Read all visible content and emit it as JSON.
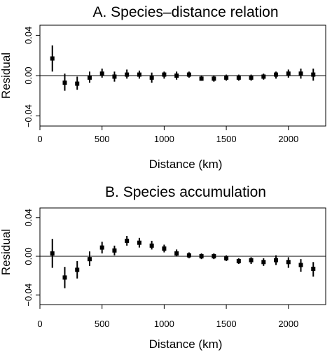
{
  "chart_data": [
    {
      "type": "scatter",
      "title": "A. Species–distance relation",
      "xlabel": "Distance (km)",
      "ylabel": "Residual",
      "xlim": [
        0,
        2300
      ],
      "ylim": [
        -0.05,
        0.05
      ],
      "xticks": [
        0,
        500,
        1000,
        1500,
        2000
      ],
      "yticks": [
        -0.04,
        0.0,
        0.04
      ],
      "ytick_labels": [
        "−0.04",
        "0.00",
        "0.04"
      ],
      "reference_line": 0,
      "grid": false,
      "series": [
        {
          "x": [
            100,
            200,
            300,
            400,
            500,
            600,
            700,
            800,
            900,
            1000,
            1100,
            1200,
            1300,
            1400,
            1500,
            1600,
            1700,
            1800,
            1900,
            2000,
            2100,
            2200
          ],
          "y": [
            0.017,
            -0.007,
            -0.008,
            -0.002,
            0.002,
            -0.001,
            0.001,
            0.001,
            -0.002,
            0.001,
            0.0,
            0.001,
            -0.003,
            -0.003,
            -0.002,
            -0.002,
            -0.002,
            -0.001,
            0.001,
            0.002,
            0.002,
            0.001
          ],
          "lower": [
            0.004,
            -0.015,
            -0.014,
            -0.007,
            -0.002,
            -0.006,
            -0.003,
            -0.003,
            -0.007,
            -0.003,
            -0.004,
            -0.002,
            -0.005,
            -0.006,
            -0.005,
            -0.005,
            -0.005,
            -0.004,
            -0.003,
            -0.002,
            -0.003,
            -0.005
          ],
          "upper": [
            0.03,
            0.002,
            -0.001,
            0.004,
            0.007,
            0.004,
            0.006,
            0.005,
            0.003,
            0.004,
            0.004,
            0.004,
            0.0,
            0.0,
            0.001,
            0.001,
            0.001,
            0.002,
            0.004,
            0.006,
            0.007,
            0.007
          ]
        }
      ]
    },
    {
      "type": "scatter",
      "title": "B. Species accumulation",
      "xlabel": "Distance (km)",
      "ylabel": "Residual",
      "xlim": [
        0,
        2300
      ],
      "ylim": [
        -0.05,
        0.05
      ],
      "xticks": [
        0,
        500,
        1000,
        1500,
        2000
      ],
      "yticks": [
        -0.04,
        0.0,
        0.04
      ],
      "ytick_labels": [
        "−0.04",
        "0.00",
        "0.04"
      ],
      "reference_line": 0,
      "grid": false,
      "series": [
        {
          "x": [
            100,
            200,
            300,
            400,
            500,
            600,
            700,
            800,
            900,
            1000,
            1100,
            1200,
            1300,
            1400,
            1500,
            1600,
            1700,
            1800,
            1900,
            2000,
            2100,
            2200
          ],
          "y": [
            0.003,
            -0.022,
            -0.014,
            -0.003,
            0.009,
            0.006,
            0.016,
            0.014,
            0.011,
            0.008,
            0.003,
            0.001,
            0.0,
            0.0,
            -0.002,
            -0.005,
            -0.004,
            -0.006,
            -0.004,
            -0.006,
            -0.009,
            -0.013
          ],
          "lower": [
            -0.012,
            -0.033,
            -0.023,
            -0.01,
            0.003,
            0.001,
            0.011,
            0.009,
            0.007,
            0.004,
            0.0,
            -0.002,
            -0.003,
            -0.003,
            -0.005,
            -0.008,
            -0.008,
            -0.01,
            -0.009,
            -0.012,
            -0.016,
            -0.021
          ],
          "upper": [
            0.018,
            -0.011,
            -0.005,
            0.005,
            0.015,
            0.011,
            0.021,
            0.019,
            0.016,
            0.012,
            0.007,
            0.004,
            0.003,
            0.003,
            0.001,
            -0.002,
            -0.001,
            -0.002,
            0.001,
            -0.001,
            -0.003,
            -0.006
          ]
        }
      ]
    }
  ]
}
